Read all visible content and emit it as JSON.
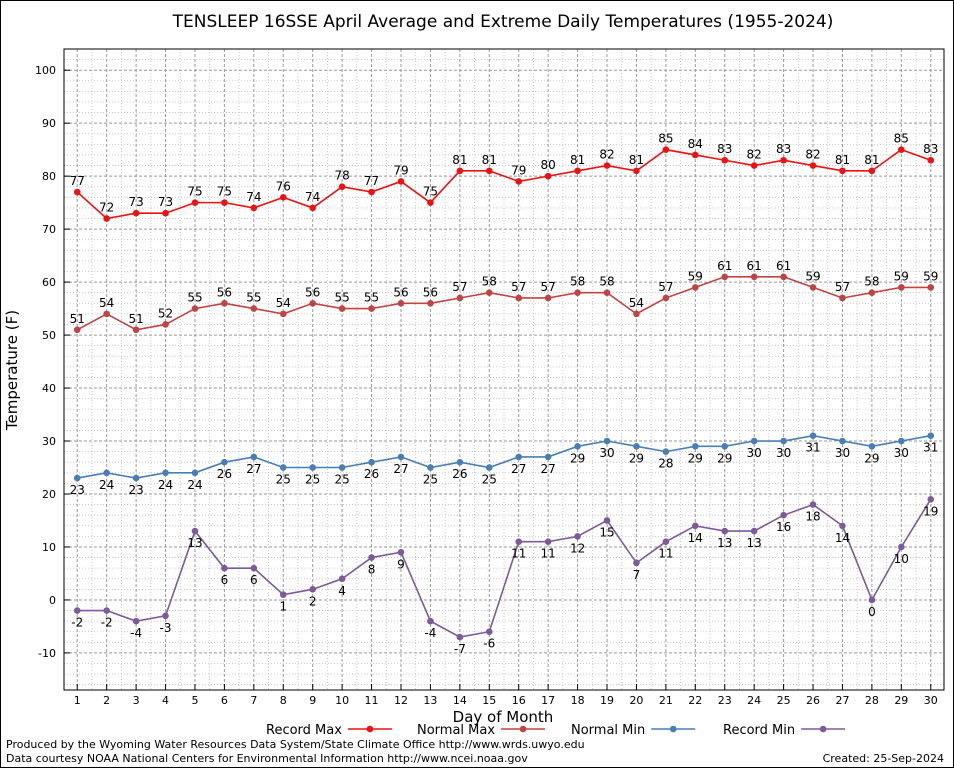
{
  "chart_data": {
    "type": "line",
    "title": "TENSLEEP 16SSE April Average and Extreme Daily Temperatures (1955-2024)",
    "xlabel": "Day of Month",
    "ylabel": "Temperature (F)",
    "x": [
      1,
      2,
      3,
      4,
      5,
      6,
      7,
      8,
      9,
      10,
      11,
      12,
      13,
      14,
      15,
      16,
      17,
      18,
      19,
      20,
      21,
      22,
      23,
      24,
      25,
      26,
      27,
      28,
      29,
      30
    ],
    "xlim": [
      0.55,
      30.45
    ],
    "ylim": [
      -17,
      104
    ],
    "yticks": [
      -10,
      0,
      10,
      20,
      30,
      40,
      50,
      60,
      70,
      80,
      90,
      100
    ],
    "grid": true,
    "legend_position": "bottom",
    "series": [
      {
        "name": "Record Max",
        "color": "#ee1111",
        "label_position": "above",
        "values": [
          77,
          72,
          73,
          73,
          75,
          75,
          74,
          76,
          74,
          78,
          77,
          79,
          75,
          81,
          81,
          79,
          80,
          81,
          82,
          81,
          85,
          84,
          83,
          82,
          83,
          82,
          81,
          81,
          85,
          83
        ]
      },
      {
        "name": "Normal Max",
        "color": "#c04444",
        "label_position": "above",
        "values": [
          51,
          54,
          51,
          52,
          55,
          56,
          55,
          54,
          56,
          55,
          55,
          56,
          56,
          57,
          58,
          57,
          57,
          58,
          58,
          54,
          57,
          59,
          61,
          61,
          61,
          59,
          57,
          58,
          59,
          59
        ]
      },
      {
        "name": "Normal Min",
        "color": "#4a7fb5",
        "label_position": "below",
        "values": [
          23,
          24,
          23,
          24,
          24,
          26,
          27,
          25,
          25,
          25,
          26,
          27,
          25,
          26,
          25,
          27,
          27,
          29,
          30,
          29,
          28,
          29,
          29,
          30,
          30,
          31,
          30,
          29,
          30,
          31
        ]
      },
      {
        "name": "Record Min",
        "color": "#7d5a9a",
        "label_position": "below",
        "values": [
          -2,
          -2,
          -4,
          -3,
          13,
          6,
          6,
          1,
          2,
          4,
          8,
          9,
          -4,
          -7,
          -6,
          11,
          11,
          12,
          15,
          7,
          11,
          14,
          13,
          13,
          16,
          18,
          14,
          0,
          10,
          19
        ]
      }
    ]
  },
  "footer": {
    "produced_by": "Produced by the Wyoming Water Resources Data System/State Climate Office http://www.wrds.uwyo.edu",
    "data_courtesy": "Data courtesy NOAA National Centers for Environmental Information http://www.ncei.noaa.gov",
    "created": "Created:  25-Sep-2024"
  }
}
